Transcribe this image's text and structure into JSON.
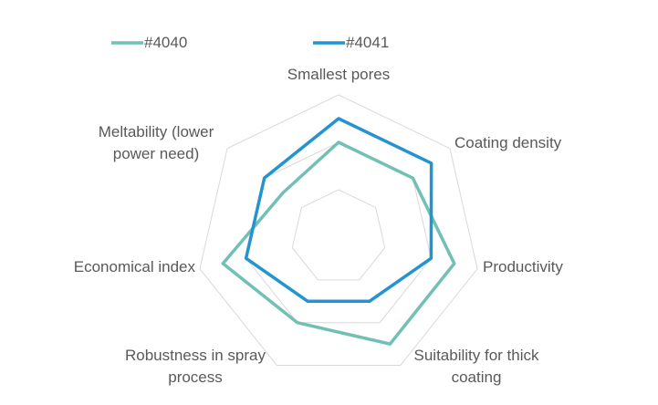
{
  "chart_data": {
    "type": "radar",
    "categories": [
      "Smallest pores",
      "Coating density",
      "Productivity",
      "Suitability for thick\ncoating",
      "Robustness in spray\nprocess",
      "Economical index",
      "Meltability (lower\npower need)"
    ],
    "series": [
      {
        "name": "#4040",
        "color": "#72c0b4",
        "values": [
          2,
          2,
          2.5,
          2.5,
          2,
          2.5,
          1.5
        ]
      },
      {
        "name": "#4041",
        "color": "#2394d1",
        "values": [
          2.5,
          2.5,
          2,
          1.5,
          1.5,
          2,
          2
        ]
      }
    ],
    "rlim": [
      0,
      3
    ],
    "rticks": [
      1,
      2,
      3
    ],
    "grid": true,
    "legend": "top"
  }
}
